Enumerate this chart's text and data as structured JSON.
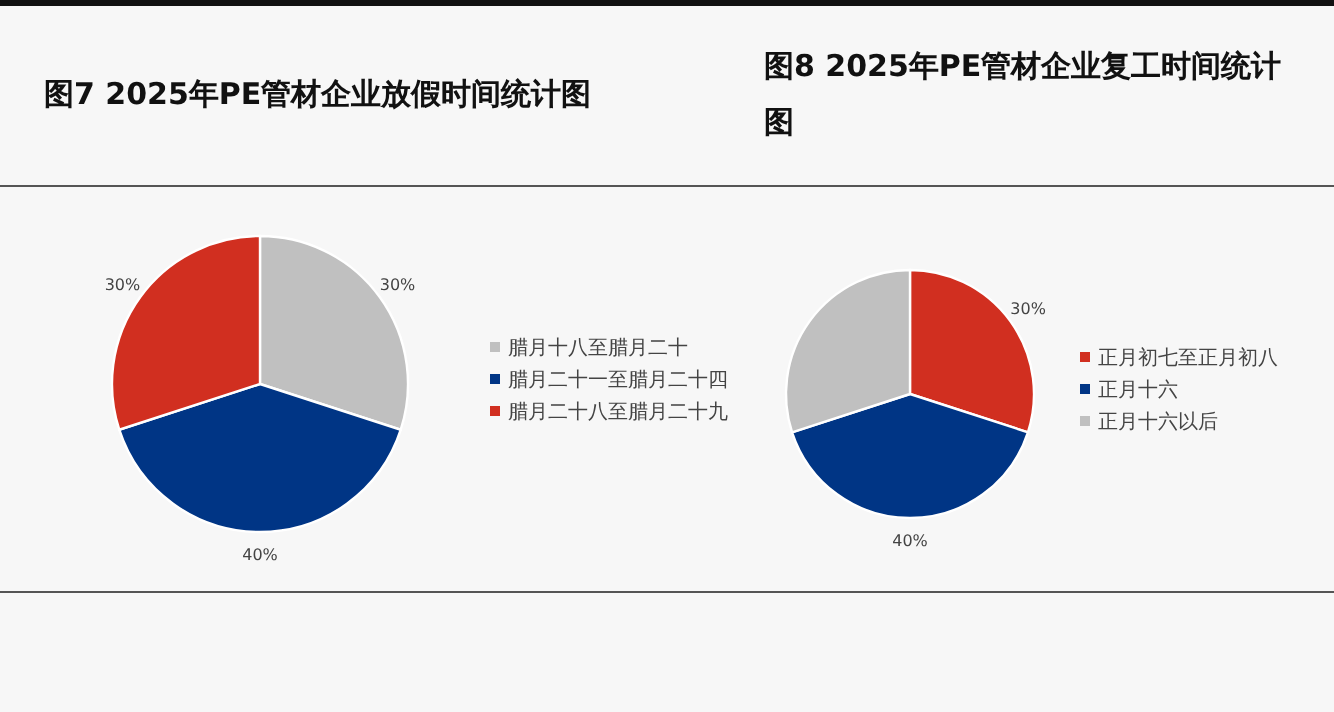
{
  "chart_data": [
    {
      "type": "pie",
      "title": "图7 2025年PE管材企业放假时间统计图",
      "categories": [
        "腊月十八至腊月二十",
        "腊月二十一至腊月二十四",
        "腊月二十八至腊月二十九"
      ],
      "values": [
        30,
        40,
        30
      ],
      "colors": [
        "#c0c0c0",
        "#003585",
        "#d12f20"
      ],
      "value_labels": [
        "30%",
        "40%",
        "30%"
      ],
      "legend": "right"
    },
    {
      "type": "pie",
      "title": "图8 2025年PE管材企业复工时间统计图",
      "categories": [
        "正月初七至正月初八",
        "正月十六",
        "正月十六以后"
      ],
      "values": [
        30,
        40,
        30
      ],
      "colors": [
        "#d12f20",
        "#003585",
        "#c0c0c0"
      ],
      "value_labels": [
        "30%",
        "40%",
        null
      ],
      "legend": "right"
    }
  ]
}
